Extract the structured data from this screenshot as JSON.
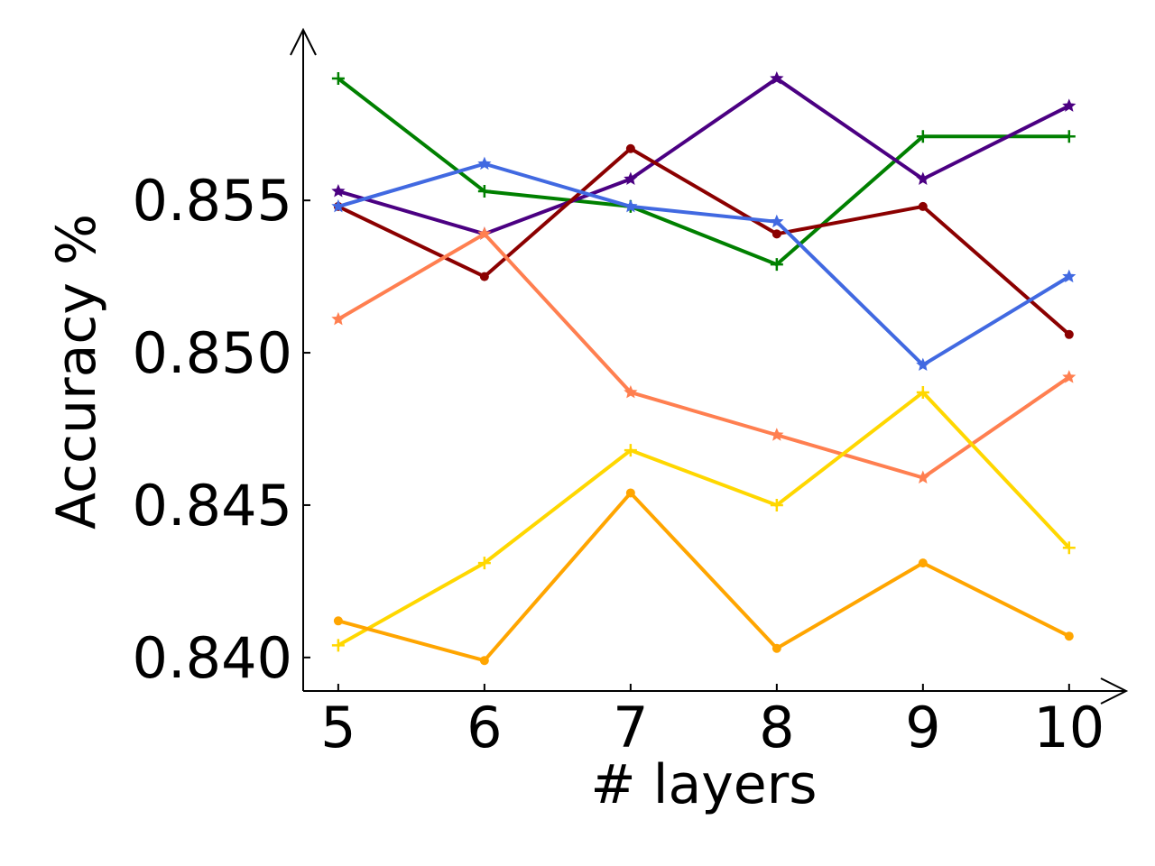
{
  "chart_data": {
    "type": "line",
    "x_label": "# layers",
    "y_label": "Accuracy %",
    "x": [
      5,
      6,
      7,
      8,
      9,
      10
    ],
    "xlim": [
      4.76,
      10.39
    ],
    "xticks": [
      5,
      6,
      7,
      8,
      9,
      10
    ],
    "ylim": [
      0.8389,
      0.8606
    ],
    "yticks": [
      {
        "value": 0.84,
        "label": "0.840"
      },
      0.845,
      {
        "value": 0.85,
        "label": "0.850"
      },
      0.855
    ],
    "grid": false,
    "series": [
      {
        "color": "#008000",
        "marker": "plus",
        "values": [
          0.859,
          0.8553,
          0.8548,
          0.8529,
          0.8571,
          0.8571
        ]
      },
      {
        "color": "#4b0082",
        "marker": "star",
        "values": [
          0.8553,
          0.8539,
          0.8557,
          0.859,
          0.8557,
          0.8581
        ]
      },
      {
        "color": "#8b0000",
        "marker": "dot",
        "values": [
          0.8548,
          0.8525,
          0.8567,
          0.8539,
          0.8548,
          0.8506
        ]
      },
      {
        "color": "#4169e1",
        "marker": "star",
        "values": [
          0.8548,
          0.8562,
          0.8548,
          0.8543,
          0.8496,
          0.8525
        ]
      },
      {
        "color": "#ff7f50",
        "marker": "star",
        "values": [
          0.8511,
          0.8539,
          0.8487,
          0.8473,
          0.8459,
          0.8492
        ]
      },
      {
        "color": "#ffd700",
        "marker": "plus",
        "values": [
          0.8404,
          0.8431,
          0.8468,
          0.845,
          0.8487,
          0.8436
        ]
      },
      {
        "color": "#ffa500",
        "marker": "dot",
        "values": [
          0.8412,
          0.8399,
          0.8454,
          0.8403,
          0.8431,
          0.8407
        ]
      }
    ]
  }
}
